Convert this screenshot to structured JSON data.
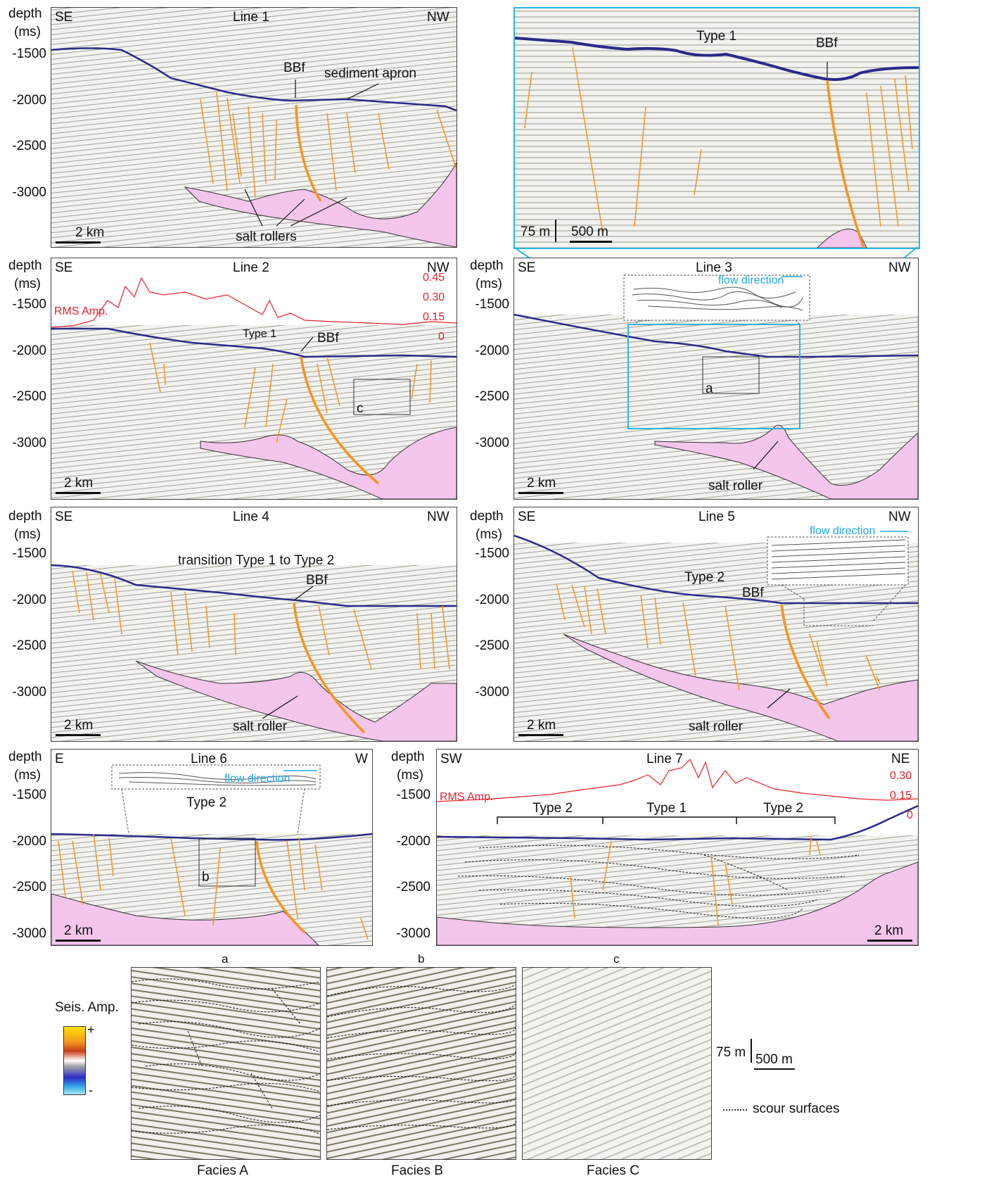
{
  "axis": {
    "depth_label": "depth",
    "unit_label": "(ms)"
  },
  "line1": {
    "title": "Line 1",
    "left": "SE",
    "right": "NW",
    "ticks": [
      "-1500",
      "-2000",
      "-2500",
      "-3000"
    ],
    "labels": {
      "bbf": "BBf",
      "apron": "sediment apron",
      "rollers": "salt rollers",
      "scale": "2 km"
    }
  },
  "inset": {
    "type": "Type 1",
    "bbf": "BBf",
    "scale_v": "75 m",
    "scale_h": "500 m"
  },
  "line2": {
    "title": "Line 2",
    "left": "SE",
    "right": "NW",
    "ticks": [
      "-1500",
      "-2000",
      "-2500",
      "-3000"
    ],
    "rms_label": "RMS Amp.",
    "rms_ticks": [
      "0.45",
      "0.30",
      "0.15",
      "0"
    ],
    "labels": {
      "type": "Type 1",
      "bbf": "BBf",
      "box": "c",
      "scale": "2 km"
    }
  },
  "line3": {
    "title": "Line 3",
    "left": "SE",
    "right": "NW",
    "ticks": [
      "-1500",
      "-2000",
      "-2500",
      "-3000"
    ],
    "labels": {
      "flow": "flow direction",
      "box": "a",
      "roller": "salt roller",
      "scale": "2 km"
    }
  },
  "line4": {
    "title": "Line 4",
    "left": "SE",
    "right": "NW",
    "ticks": [
      "-1500",
      "-2000",
      "-2500",
      "-3000"
    ],
    "labels": {
      "transition": "transition Type 1 to Type 2",
      "bbf": "BBf",
      "roller": "salt roller",
      "scale": "2 km"
    }
  },
  "line5": {
    "title": "Line 5",
    "left": "SE",
    "right": "NW",
    "ticks": [
      "-1500",
      "-2000",
      "-2500",
      "-3000"
    ],
    "labels": {
      "flow": "flow direction",
      "type": "Type 2",
      "bbf": "BBf",
      "roller": "salt roller",
      "scale": "2 km"
    }
  },
  "line6": {
    "title": "Line 6",
    "left": "E",
    "right": "W",
    "ticks": [
      "-1500",
      "-2000",
      "-2500",
      "-3000"
    ],
    "labels": {
      "flow": "flow direction",
      "type": "Type 2",
      "box": "b",
      "scale": "2 km"
    }
  },
  "line7": {
    "title": "Line 7",
    "left": "SW",
    "right": "NE",
    "ticks": [
      "-1500",
      "-2000",
      "-2500",
      "-3000"
    ],
    "rms_label": "RMS Amp.",
    "rms_ticks": [
      "0.30",
      "0.15",
      "0"
    ],
    "types": [
      "Type 2",
      "Type 1",
      "Type 2"
    ],
    "scale": "2 km"
  },
  "facies": {
    "letters": [
      "a",
      "b",
      "c"
    ],
    "names": [
      "Facies A",
      "Facies B",
      "Facies C"
    ]
  },
  "legend": {
    "amp_title": "Seis. Amp.",
    "plus": "+",
    "minus": "-",
    "scale_v": "75 m",
    "scale_h": "500 m",
    "scour": "scour surfaces"
  },
  "colors": {
    "fault": "#f7941d",
    "salt": "#f4c6ec",
    "rms": "#e8202a",
    "seafloor": "#2a2a8a",
    "zoom": "#29b6e8"
  }
}
